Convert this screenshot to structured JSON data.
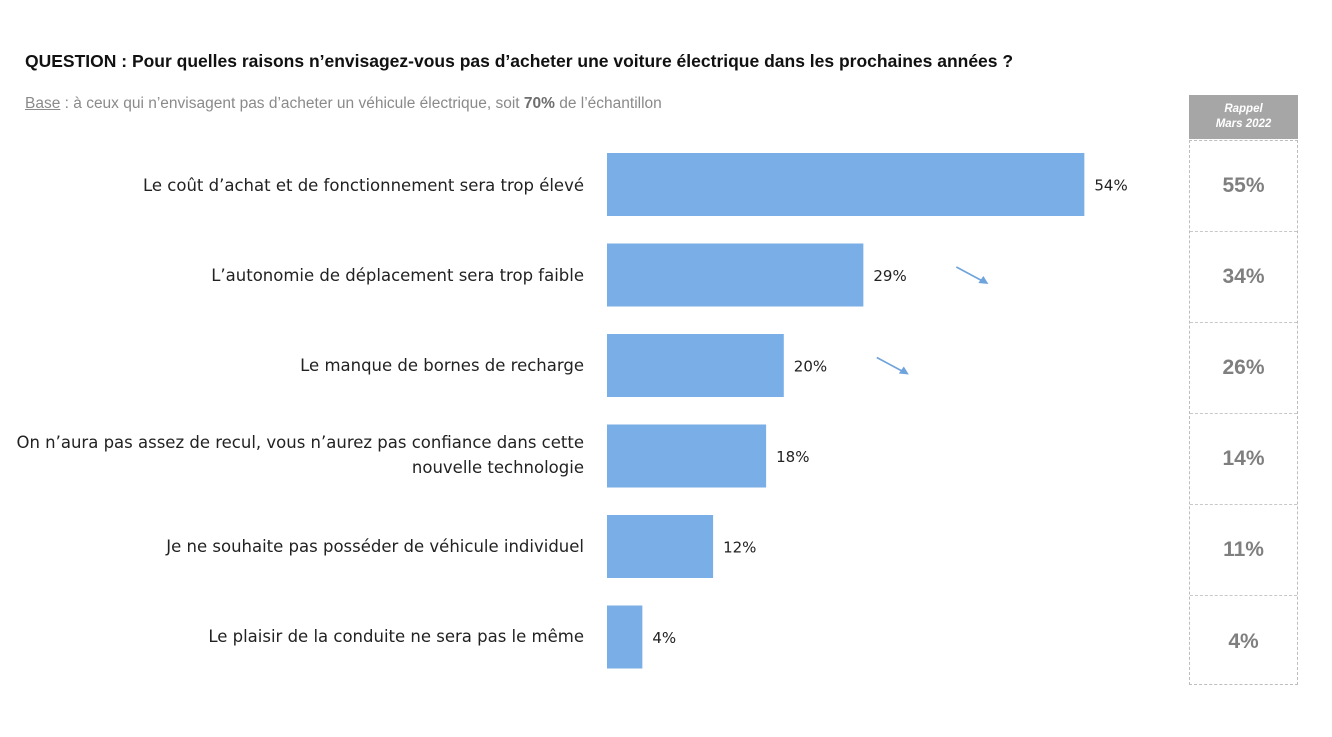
{
  "question": "QUESTION : Pour quelles raisons n’envisagez-vous pas d’acheter une voiture électrique dans les prochaines années ?",
  "base": {
    "label": "Base",
    "text_before": " : à ceux qui n’envisagent pas d’acheter un véhicule électrique, soit ",
    "bold": "70%",
    "text_after": " de l’échantillon"
  },
  "rappel": {
    "header_line1": "Rappel",
    "header_line2": "Mars 2022",
    "values": [
      "55%",
      "34%",
      "26%",
      "14%",
      "11%",
      "4%"
    ]
  },
  "colors": {
    "bar": "#7aaee6",
    "arrow": "#6fa3dc"
  },
  "chart_data": {
    "type": "bar",
    "orientation": "horizontal",
    "categories": [
      "Le coût d’achat et de fonctionnement sera trop élevé",
      "L’autonomie de déplacement sera trop faible",
      "Le manque de bornes de recharge",
      "On n’aura pas assez de recul, vous n’aurez pas confiance dans cette nouvelle technologie",
      "Je ne souhaite pas posséder de véhicule individuel",
      "Le plaisir de la conduite ne sera pas le même"
    ],
    "values": [
      54,
      29,
      20,
      18,
      12,
      4
    ],
    "labels": [
      "54%",
      "29%",
      "20%",
      "18%",
      "12%",
      "4%"
    ],
    "trend_down": [
      false,
      true,
      true,
      false,
      false,
      false
    ],
    "xlim": [
      0,
      60
    ]
  }
}
